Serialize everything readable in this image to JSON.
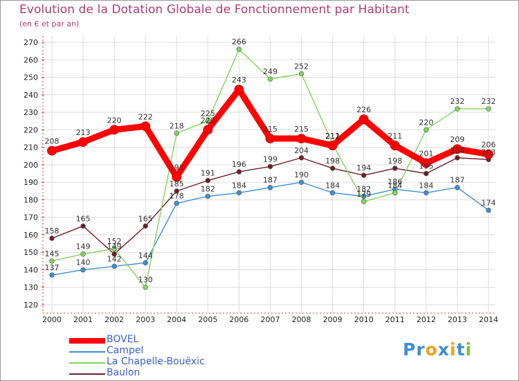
{
  "chart_data": {
    "type": "line",
    "title": "Evolution de la Dotation Globale de Fonctionnement par Habitant",
    "subtitle": "(en € et par an)",
    "xlabel": "",
    "ylabel": "",
    "ylim": [
      120,
      270
    ],
    "yticks": [
      120,
      130,
      140,
      150,
      160,
      170,
      180,
      190,
      200,
      210,
      220,
      230,
      240,
      250,
      260,
      270
    ],
    "categories": [
      "2000",
      "2001",
      "2002",
      "2003",
      "2004",
      "2005",
      "2006",
      "2007",
      "2008",
      "2009",
      "2010",
      "2011",
      "2012",
      "2013",
      "2014"
    ],
    "legend_position": "bottom-left",
    "series": [
      {
        "name": "Baulon",
        "color": "#6b1f2a",
        "values": [
          158,
          165,
          149,
          165,
          185,
          191,
          196,
          199,
          204,
          198,
          194,
          198,
          195,
          204,
          203
        ],
        "labels": [
          "158",
          "165",
          "149",
          "165",
          "185",
          "191",
          "196",
          "199",
          "204",
          "198",
          "194",
          "198",
          "195",
          "204",
          "203"
        ]
      },
      {
        "name": "Campel",
        "color": "#3d8fd1",
        "values": [
          137,
          140,
          142,
          144,
          178,
          182,
          184,
          187,
          190,
          184,
          182,
          186,
          184,
          187,
          174
        ],
        "labels": [
          "137",
          "140",
          "142",
          "144",
          "178",
          "182",
          "184",
          "187",
          "190",
          "184",
          "182",
          "186",
          "184",
          "187",
          "174"
        ]
      },
      {
        "name": "La Chapelle-Bouëxic",
        "color": "#7fd65a",
        "values": [
          145,
          149,
          152,
          130,
          218,
          225,
          266,
          249,
          252,
          212,
          179,
          184,
          220,
          232,
          232
        ],
        "labels": [
          "145",
          "149",
          "152",
          "130",
          "218",
          "225",
          "266",
          "249",
          "252",
          "212",
          "179",
          "184",
          "220",
          "232",
          "232"
        ]
      },
      {
        "name": "BOVEL",
        "color": "#ff0000",
        "values": [
          208,
          213,
          220,
          222,
          193,
          220,
          243,
          215,
          215,
          211,
          226,
          211,
          201,
          209,
          206
        ],
        "labels": [
          "208",
          "213",
          "220",
          "222",
          "193",
          "220",
          "243",
          "215",
          "215",
          "211",
          "226",
          "211",
          "201",
          "209",
          "206"
        ]
      }
    ]
  },
  "legend": {
    "items": [
      "BOVEL",
      "Campel",
      "La Chapelle-Bouëxic",
      "Baulon"
    ]
  },
  "logo": {
    "letters": [
      "P",
      "r",
      "o",
      "x",
      "i",
      "t",
      "i"
    ],
    "colors": [
      "#3d8fd1",
      "#3d8fd1",
      "#f0a020",
      "#3d8fd1",
      "#f0a020",
      "#3d8fd1",
      "#7fc040"
    ]
  }
}
